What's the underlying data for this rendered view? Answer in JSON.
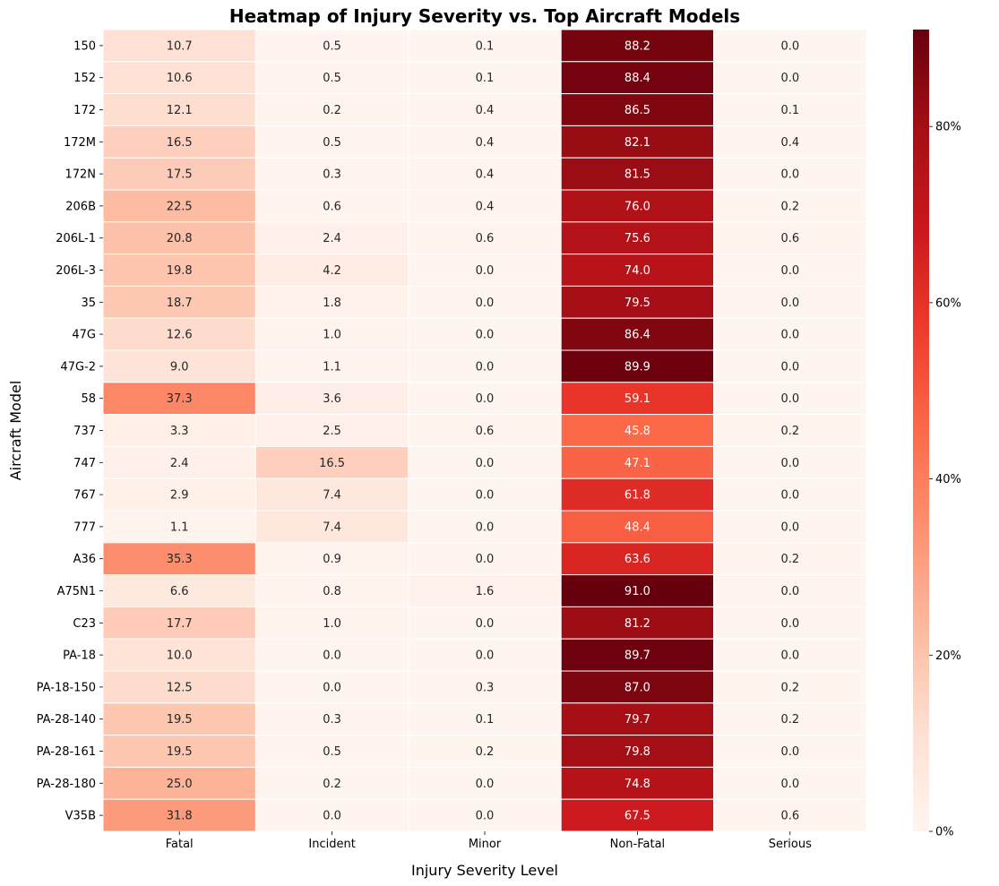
{
  "chart_data": {
    "type": "heatmap",
    "title": "Heatmap of Injury Severity vs. Top Aircraft Models",
    "xlabel": "Injury Severity Level",
    "ylabel": "Aircraft Model",
    "columns": [
      "Fatal",
      "Incident",
      "Minor",
      "Non-Fatal",
      "Serious"
    ],
    "rows": [
      "150",
      "152",
      "172",
      "172M",
      "172N",
      "206B",
      "206L-1",
      "206L-3",
      "35",
      "47G",
      "47G-2",
      "58",
      "737",
      "747",
      "767",
      "777",
      "A36",
      "A75N1",
      "C23",
      "PA-18",
      "PA-18-150",
      "PA-28-140",
      "PA-28-161",
      "PA-28-180",
      "V35B"
    ],
    "values": [
      [
        "10.7",
        "0.5",
        "0.1",
        "88.2",
        "0.0"
      ],
      [
        "10.6",
        "0.5",
        "0.1",
        "88.4",
        "0.0"
      ],
      [
        "12.1",
        "0.2",
        "0.4",
        "86.5",
        "0.1"
      ],
      [
        "16.5",
        "0.5",
        "0.4",
        "82.1",
        "0.4"
      ],
      [
        "17.5",
        "0.3",
        "0.4",
        "81.5",
        "0.0"
      ],
      [
        "22.5",
        "0.6",
        "0.4",
        "76.0",
        "0.2"
      ],
      [
        "20.8",
        "2.4",
        "0.6",
        "75.6",
        "0.6"
      ],
      [
        "19.8",
        "4.2",
        "0.0",
        "74.0",
        "0.0"
      ],
      [
        "18.7",
        "1.8",
        "0.0",
        "79.5",
        "0.0"
      ],
      [
        "12.6",
        "1.0",
        "0.0",
        "86.4",
        "0.0"
      ],
      [
        "9.0",
        "1.1",
        "0.0",
        "89.9",
        "0.0"
      ],
      [
        "37.3",
        "3.6",
        "0.0",
        "59.1",
        "0.0"
      ],
      [
        "3.3",
        "2.5",
        "0.6",
        "45.8",
        "0.2"
      ],
      [
        "2.4",
        "16.5",
        "0.0",
        "47.1",
        "0.0"
      ],
      [
        "2.9",
        "7.4",
        "0.0",
        "61.8",
        "0.0"
      ],
      [
        "1.1",
        "7.4",
        "0.0",
        "48.4",
        "0.0"
      ],
      [
        "35.3",
        "0.9",
        "0.0",
        "63.6",
        "0.2"
      ],
      [
        "6.6",
        "0.8",
        "1.6",
        "91.0",
        "0.0"
      ],
      [
        "17.7",
        "1.0",
        "0.0",
        "81.2",
        "0.0"
      ],
      [
        "10.0",
        "0.0",
        "0.0",
        "89.7",
        "0.0"
      ],
      [
        "12.5",
        "0.0",
        "0.3",
        "87.0",
        "0.2"
      ],
      [
        "19.5",
        "0.3",
        "0.1",
        "79.7",
        "0.2"
      ],
      [
        "19.5",
        "0.5",
        "0.2",
        "79.8",
        "0.0"
      ],
      [
        "25.0",
        "0.2",
        "0.0",
        "74.8",
        "0.0"
      ],
      [
        "31.8",
        "0.0",
        "0.0",
        "67.5",
        "0.6"
      ]
    ],
    "colormap": "Reds",
    "vmin": 0,
    "vmax": 91.0,
    "colorbar": {
      "ticks": [
        0,
        20,
        40,
        60,
        80
      ],
      "tick_labels": [
        "0%",
        "20%",
        "40%",
        "60%",
        "80%"
      ]
    }
  }
}
